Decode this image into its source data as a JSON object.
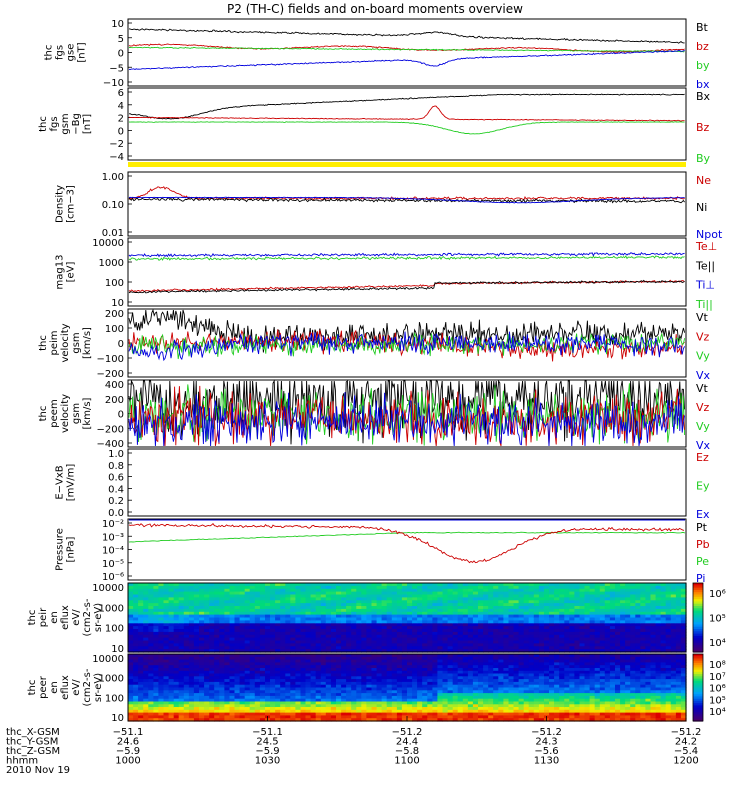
{
  "title": "P2 (TH-C) fields and on-board moments overview",
  "chart_data": [
    {
      "type": "line",
      "ylabel": [
        "thc",
        "fgs",
        "gse",
        "[nT]"
      ],
      "ylim": [
        -10,
        10
      ],
      "yticks": [
        "10",
        "5",
        "0",
        "−5",
        "−10"
      ],
      "series": [
        {
          "name": "Bt",
          "color": "#000000"
        },
        {
          "name": "bz",
          "color": "#cc0000"
        },
        {
          "name": "by",
          "color": "#22cc22"
        },
        {
          "name": "bx",
          "color": "#0000dd"
        }
      ]
    },
    {
      "type": "line",
      "ylabel": [
        "thc",
        "fgs",
        "gsm",
        "−Bg"
      ],
      "ylabel2": "[nT]",
      "ylim": [
        -5,
        6
      ],
      "yticks": [
        "6",
        "4",
        "2",
        "0",
        "−2",
        "−4"
      ],
      "series": [
        {
          "name": "Bx",
          "color": "#000000"
        },
        {
          "name": "Bz",
          "color": "#cc0000"
        },
        {
          "name": "By",
          "color": "#22cc22"
        }
      ]
    },
    {
      "type": "line",
      "ylabel": [
        "Density",
        "[cm−3]"
      ],
      "scale": "log",
      "yticks": [
        "1.00",
        "0.10",
        "0.01"
      ],
      "series": [
        {
          "name": "Ne",
          "color": "#cc0000"
        },
        {
          "name": "Ni",
          "color": "#000000"
        },
        {
          "name": "Npot",
          "color": "#0000dd"
        }
      ]
    },
    {
      "type": "line",
      "ylabel": [
        "mag13",
        "[eV]"
      ],
      "scale": "log",
      "yticks": [
        "10000",
        "1000",
        "100",
        "10"
      ],
      "series": [
        {
          "name": "Te⊥",
          "color": "#cc0000"
        },
        {
          "name": "Te||",
          "color": "#000000"
        },
        {
          "name": "Ti⊥",
          "color": "#0000dd"
        },
        {
          "name": "Ti||",
          "color": "#22cc22"
        }
      ]
    },
    {
      "type": "line",
      "ylabel": [
        "thc",
        "peim",
        "velocity",
        "gsm",
        "[km/s]"
      ],
      "ylim": [
        -200,
        200
      ],
      "yticks": [
        "200",
        "100",
        "0",
        "−100",
        "−200"
      ],
      "series": [
        {
          "name": "Vt",
          "color": "#000000"
        },
        {
          "name": "Vz",
          "color": "#cc0000"
        },
        {
          "name": "Vy",
          "color": "#22cc22"
        },
        {
          "name": "Vx",
          "color": "#0000dd"
        }
      ]
    },
    {
      "type": "line",
      "ylabel": [
        "thc",
        "peem",
        "velocity",
        "gsm",
        "[km/s]"
      ],
      "ylim": [
        -400,
        400
      ],
      "yticks": [
        "400",
        "200",
        "0",
        "−200",
        "−400"
      ],
      "series": [
        {
          "name": "Vt",
          "color": "#000000"
        },
        {
          "name": "Vz",
          "color": "#cc0000"
        },
        {
          "name": "Vy",
          "color": "#22cc22"
        },
        {
          "name": "Vx",
          "color": "#0000dd"
        }
      ]
    },
    {
      "type": "line",
      "ylabel": [
        "E−VxB",
        "[mV/m]"
      ],
      "ylim": [
        0,
        1
      ],
      "yticks": [
        "1.0",
        "0.8",
        "0.6",
        "0.4",
        "0.2",
        "0.0"
      ],
      "series": [
        {
          "name": "Ez",
          "color": "#cc0000"
        },
        {
          "name": "Ey",
          "color": "#22cc22"
        },
        {
          "name": "Ex",
          "color": "#0000dd"
        }
      ]
    },
    {
      "type": "line",
      "ylabel": [
        "Pressure",
        "[nPa]"
      ],
      "scale": "log",
      "yticks": [
        "10⁻²",
        "10⁻³",
        "10⁻⁴",
        "10⁻⁵",
        "10⁻⁶"
      ],
      "series": [
        {
          "name": "Pt",
          "color": "#000000"
        },
        {
          "name": "Pb",
          "color": "#cc0000"
        },
        {
          "name": "Pe",
          "color": "#22cc22"
        },
        {
          "name": "Pi",
          "color": "#0000dd"
        }
      ]
    },
    {
      "type": "heatmap",
      "ylabel": [
        "thc",
        "peir",
        "en",
        "eflux",
        "eV/",
        "(cm2-s-",
        "sr-eV)"
      ],
      "scale": "log",
      "yticks": [
        "10000",
        "1000",
        "100",
        "10"
      ],
      "colorbar": [
        "10⁶",
        "10⁵",
        "10⁴"
      ]
    },
    {
      "type": "heatmap",
      "ylabel": [
        "thc",
        "peer",
        "en",
        "eflux",
        "eV/",
        "(cm2-s-",
        "sr-eV)"
      ],
      "scale": "log",
      "yticks": [
        "10000",
        "1000",
        "100",
        "10"
      ],
      "colorbar": [
        "10⁸",
        "10⁷",
        "10⁶",
        "10⁵",
        "10⁴"
      ]
    }
  ],
  "xaxis": {
    "rows": [
      {
        "label": "thc_X-GSM",
        "values": [
          "−51.1",
          "−51.1",
          "−51.2",
          "−51.2",
          "−51.2"
        ]
      },
      {
        "label": "thc_Y-GSM",
        "values": [
          "24.6",
          "24.5",
          "24.4",
          "24.3",
          "24.2"
        ]
      },
      {
        "label": "thc_Z-GSM",
        "values": [
          "−5.9",
          "−5.9",
          "−5.8",
          "−5.6",
          "−5.4"
        ]
      },
      {
        "label": "hhmm",
        "values": [
          "1000",
          "1030",
          "1100",
          "1130",
          "1200"
        ]
      }
    ],
    "date": "2010 Nov 19"
  },
  "colors": {
    "black": "#000000",
    "red": "#cc0000",
    "green": "#22cc22",
    "blue": "#0000dd",
    "flag_bar": "#ffee00"
  }
}
